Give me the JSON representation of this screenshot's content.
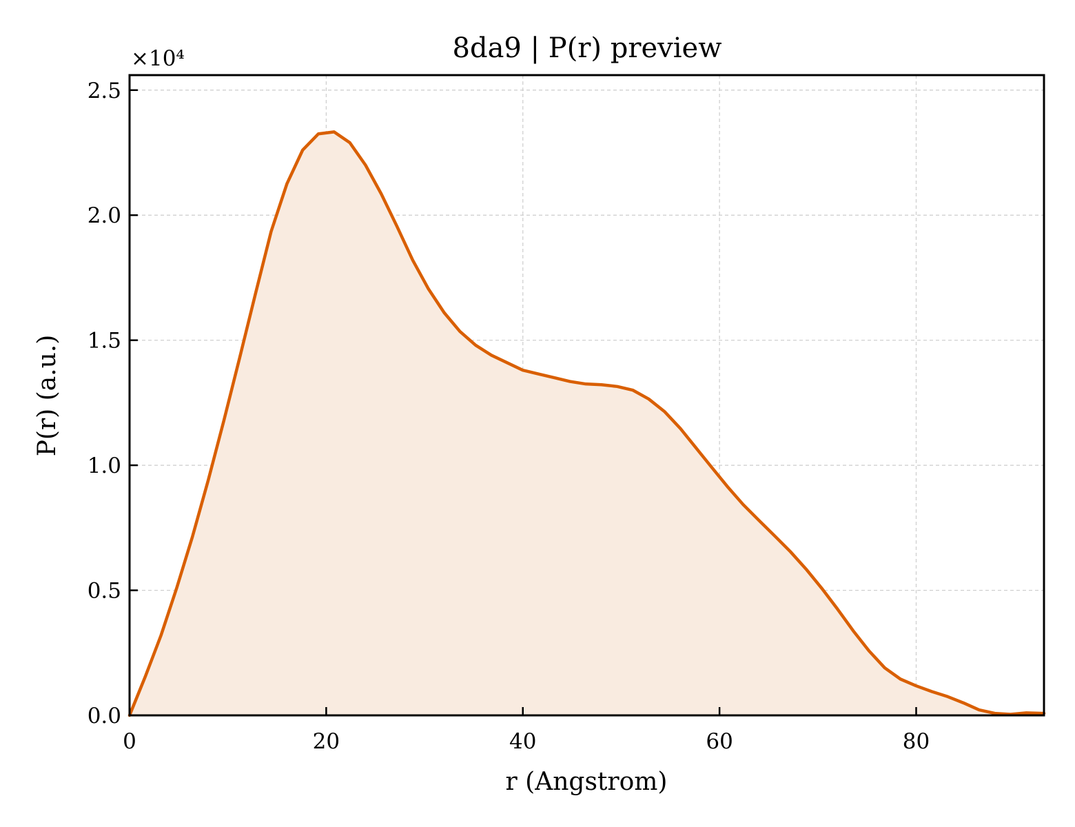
{
  "chart_data": {
    "type": "area",
    "title": "8da9 | P(r) preview",
    "xlabel": "r (Angstrom)",
    "ylabel": "P(r) (a.u.)",
    "y_multiplier": "×10⁴",
    "xlim": [
      0,
      93
    ],
    "ylim": [
      0,
      2.56
    ],
    "x_ticks": [
      0,
      20,
      40,
      60,
      80
    ],
    "x_tick_labels": [
      "0",
      "20",
      "40",
      "60",
      "80"
    ],
    "y_ticks": [
      0,
      0.5,
      1.0,
      1.5,
      2.0,
      2.5
    ],
    "y_tick_labels": [
      "0.0",
      "0.5",
      "1.0",
      "1.5",
      "2.0",
      "2.5"
    ],
    "grid": true,
    "line_color": "#d95f02",
    "fill_color": "#f9ebe0",
    "series": [
      {
        "x": [
          0,
          1.6,
          3.2,
          4.8,
          6.4,
          8.0,
          9.6,
          11.2,
          12.8,
          14.4,
          16.0,
          17.6,
          19.2,
          20.8,
          22.4,
          24.0,
          25.6,
          27.2,
          28.8,
          30.4,
          32.0,
          33.6,
          35.2,
          36.8,
          38.4,
          40.0,
          41.6,
          43.2,
          44.8,
          46.4,
          48.0,
          49.6,
          51.2,
          52.8,
          54.4,
          56.0,
          57.6,
          59.2,
          60.8,
          62.4,
          64.0,
          65.6,
          67.2,
          68.8,
          70.4,
          72.0,
          73.6,
          75.2,
          76.8,
          78.4,
          80.0,
          81.6,
          83.2,
          84.8,
          86.4,
          88.0,
          89.6,
          91.2,
          93.0
        ],
        "y": [
          0.0,
          0.155,
          0.32,
          0.51,
          0.715,
          0.94,
          1.18,
          1.43,
          1.685,
          1.935,
          2.125,
          2.26,
          2.325,
          2.333,
          2.29,
          2.2,
          2.085,
          1.955,
          1.82,
          1.705,
          1.61,
          1.535,
          1.48,
          1.44,
          1.41,
          1.38,
          1.365,
          1.35,
          1.335,
          1.325,
          1.322,
          1.315,
          1.3,
          1.265,
          1.215,
          1.148,
          1.07,
          0.992,
          0.915,
          0.843,
          0.78,
          0.718,
          0.655,
          0.585,
          0.508,
          0.425,
          0.338,
          0.258,
          0.19,
          0.145,
          0.118,
          0.095,
          0.075,
          0.05,
          0.022,
          0.008,
          0.004,
          0.01,
          0.008
        ]
      }
    ]
  }
}
